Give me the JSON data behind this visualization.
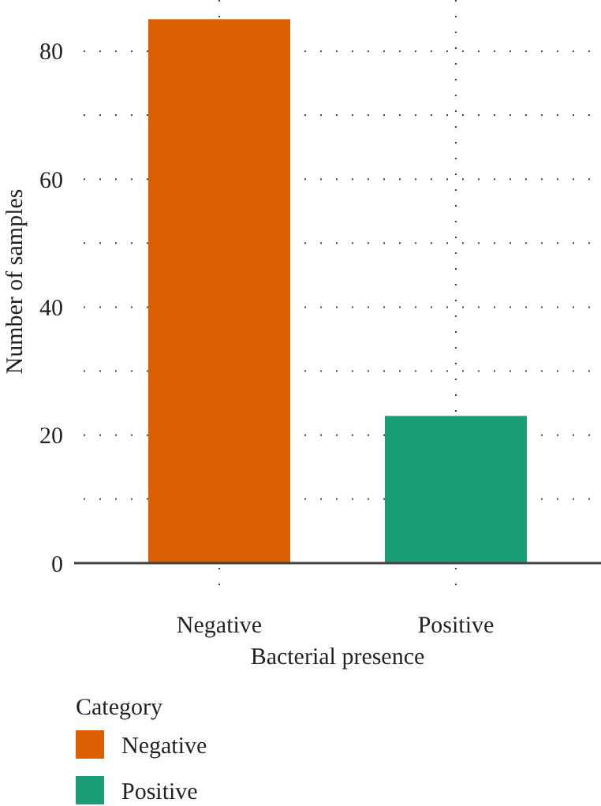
{
  "chart_data": {
    "type": "bar",
    "xlabel": "Bacterial presence",
    "ylabel": "Number of samples",
    "legend_title": "Category",
    "categories": [
      "Negative",
      "Positive"
    ],
    "series": [
      {
        "name": "Negative",
        "color": "#d95f02",
        "values": [
          85,
          null
        ]
      },
      {
        "name": "Positive",
        "color": "#1b9e77",
        "values": [
          null,
          23
        ]
      }
    ],
    "ylim": [
      0,
      88
    ],
    "yticks": [
      0,
      {
        "value": 10,
        "label": null
      },
      20,
      {
        "value": 30,
        "label": null
      },
      40,
      {
        "value": 50,
        "label": null
      },
      60,
      {
        "value": 70,
        "label": null
      },
      80
    ],
    "grid": true,
    "legend": "bottom left"
  }
}
